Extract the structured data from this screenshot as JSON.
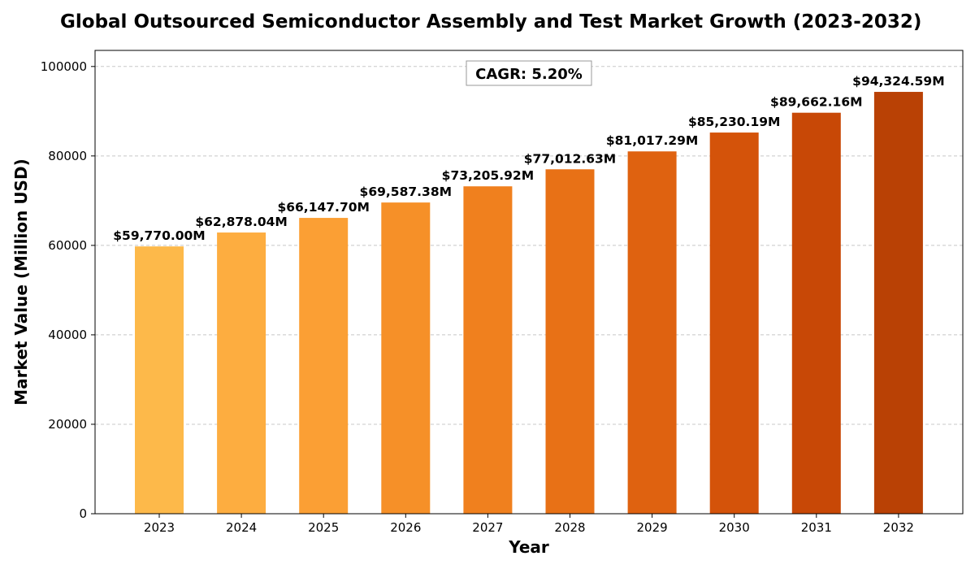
{
  "chart_data": {
    "type": "bar",
    "title": "Global Outsourced Semiconductor Assembly and Test Market Growth (2023-2032)",
    "xlabel": "Year",
    "ylabel": "Market Value (Million USD)",
    "categories": [
      "2023",
      "2024",
      "2025",
      "2026",
      "2027",
      "2028",
      "2029",
      "2030",
      "2031",
      "2032"
    ],
    "values": [
      59770.0,
      62878.04,
      66147.7,
      69587.38,
      73205.92,
      77012.63,
      81017.29,
      85230.19,
      89662.16,
      94324.59
    ],
    "data_labels": [
      "$59,770.00M",
      "$62,878.04M",
      "$66,147.70M",
      "$69,587.38M",
      "$73,205.92M",
      "$77,012.63M",
      "$81,017.29M",
      "$85,230.19M",
      "$89,662.16M",
      "$94,324.59M"
    ],
    "colors": [
      "#FDB94A",
      "#FDAD40",
      "#FB9F34",
      "#F69028",
      "#F0801E",
      "#E87116",
      "#DF6210",
      "#D4530A",
      "#C84806",
      "#B94105"
    ],
    "ylim": [
      0,
      103600
    ],
    "yticks": [
      0,
      20000,
      40000,
      60000,
      80000,
      100000
    ],
    "ytick_labels": [
      "0",
      "20000",
      "40000",
      "60000",
      "80000",
      "100000"
    ],
    "grid": "horizontal dashed",
    "annotation": "CAGR: 5.20%"
  }
}
